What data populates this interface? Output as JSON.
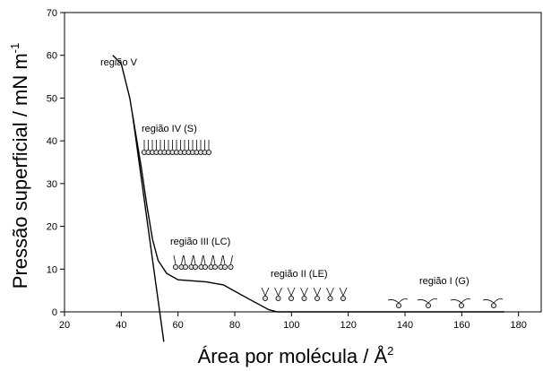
{
  "chart_data": {
    "type": "line",
    "xlabel": "Área por molécula / Å",
    "xlabel_sup": "2",
    "ylabel": "Pressão superficial / mN m",
    "ylabel_sup": "-1",
    "xlim": [
      20,
      188
    ],
    "ylim": [
      0,
      70
    ],
    "xticks": [
      20,
      40,
      60,
      80,
      100,
      120,
      140,
      160,
      180
    ],
    "yticks": [
      0,
      10,
      20,
      30,
      40,
      50,
      60,
      70
    ],
    "annotations": [
      "região V",
      "região IV (S)",
      "região III (LC)",
      "região II (LE)",
      "região I (G)"
    ],
    "series": [
      {
        "color": "#000000",
        "x": [
          37,
          40,
          43,
          45,
          47,
          49,
          51,
          53,
          56,
          60,
          70,
          76,
          85,
          92,
          95,
          175
        ],
        "values": [
          60,
          58,
          50,
          42,
          34,
          25,
          17,
          12,
          9,
          7.5,
          7,
          6.3,
          3,
          0.5,
          0,
          0
        ]
      },
      {
        "color": "#000000",
        "x": [
          44,
          55
        ],
        "values": [
          46,
          -7
        ]
      }
    ]
  }
}
